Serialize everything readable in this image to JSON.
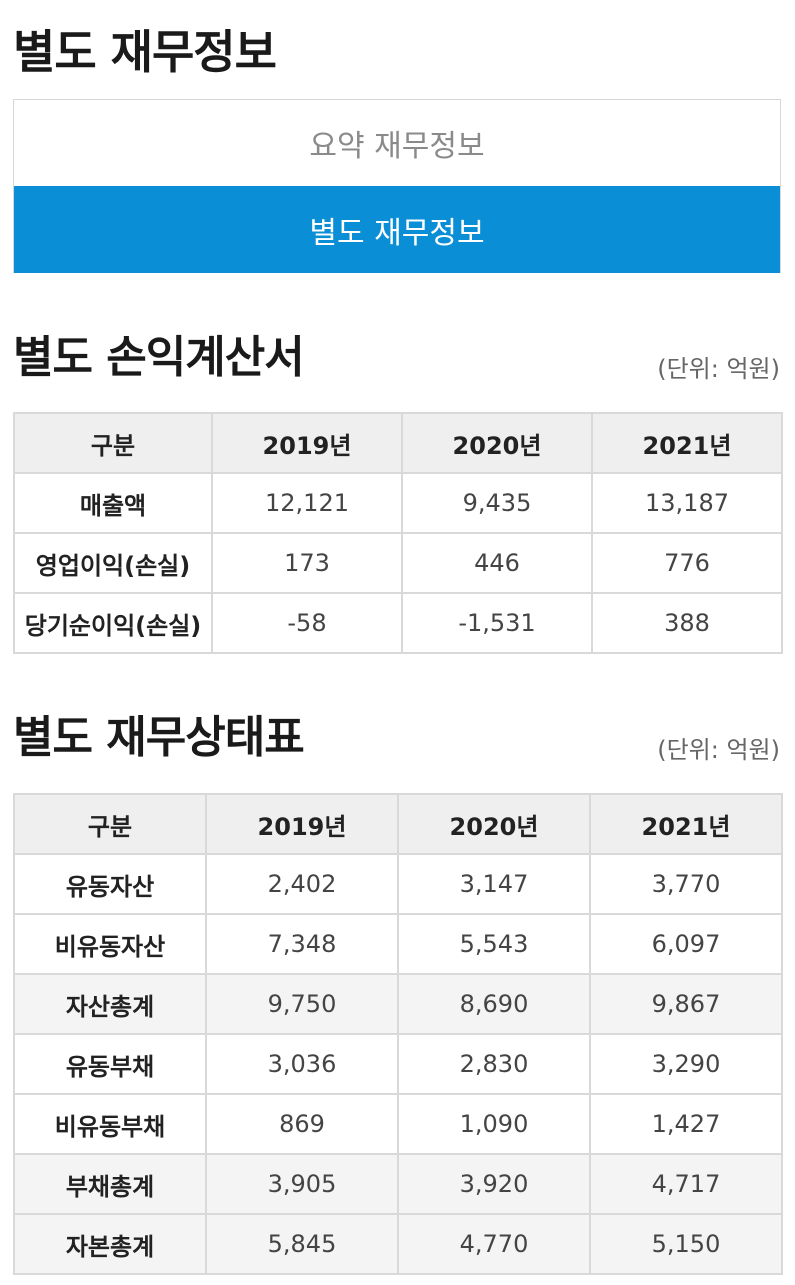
{
  "page": {
    "title": "별도 재무정보"
  },
  "tabs": [
    {
      "label": "요약 재무정보",
      "active": false
    },
    {
      "label": "별도 재무정보",
      "active": true
    }
  ],
  "colors": {
    "accent": "#0a8ed6",
    "header_bg": "#efefef",
    "border": "#d9d9d9"
  },
  "income_statement": {
    "title": "별도 손익계산서",
    "unit": "(단위: 억원)",
    "headers": [
      "구분",
      "2019년",
      "2020년",
      "2021년"
    ],
    "rows": [
      {
        "label": "매출액",
        "values": [
          "12,121",
          "9,435",
          "13,187"
        ]
      },
      {
        "label": "영업이익(손실)",
        "values": [
          "173",
          "446",
          "776"
        ]
      },
      {
        "label": "당기순이익(손실)",
        "values": [
          "-58",
          "-1,531",
          "388"
        ]
      }
    ]
  },
  "balance_sheet": {
    "title": "별도 재무상태표",
    "unit": "(단위: 억원)",
    "headers": [
      "구분",
      "2019년",
      "2020년",
      "2021년"
    ],
    "rows": [
      {
        "label": "유동자산",
        "values": [
          "2,402",
          "3,147",
          "3,770"
        ]
      },
      {
        "label": "비유동자산",
        "values": [
          "7,348",
          "5,543",
          "6,097"
        ]
      },
      {
        "label": "자산총계",
        "values": [
          "9,750",
          "8,690",
          "9,867"
        ]
      },
      {
        "label": "유동부채",
        "values": [
          "3,036",
          "2,830",
          "3,290"
        ]
      },
      {
        "label": "비유동부채",
        "values": [
          "869",
          "1,090",
          "1,427"
        ]
      },
      {
        "label": "부채총계",
        "values": [
          "3,905",
          "3,920",
          "4,717"
        ]
      },
      {
        "label": "자본총계",
        "values": [
          "5,845",
          "4,770",
          "5,150"
        ]
      }
    ]
  }
}
